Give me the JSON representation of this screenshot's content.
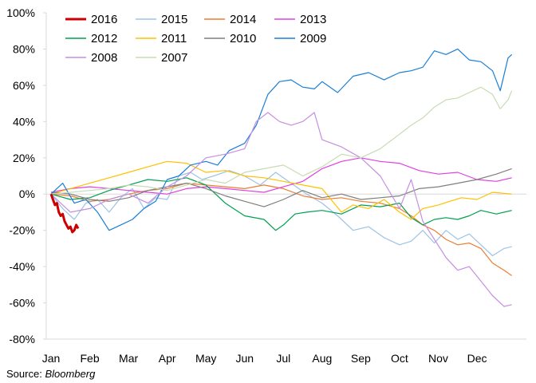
{
  "chart_data": {
    "type": "line",
    "title": "",
    "xlabel": "",
    "ylabel": "",
    "ylim": [
      -80,
      100
    ],
    "y_ticks": [
      100,
      80,
      60,
      40,
      20,
      0,
      -20,
      -40,
      -60,
      -80
    ],
    "y_tick_labels": [
      "100%",
      "80%",
      "60%",
      "40%",
      "20%",
      "0%",
      "-20%",
      "-40%",
      "-60%",
      "-80%"
    ],
    "x_ticks": [
      "Jan",
      "Feb",
      "Mar",
      "Apr",
      "May",
      "Jun",
      "Jul",
      "Aug",
      "Sep",
      "Oct",
      "Nov",
      "Dec"
    ],
    "x_range_months": [
      0,
      12
    ],
    "grid": {
      "horizontal": false,
      "zero_line": true
    },
    "legend": {
      "placement": "top-left",
      "columns": 4
    },
    "series": [
      {
        "name": "2016",
        "color": "#cc0000",
        "highlight": true,
        "points": [
          [
            0,
            0
          ],
          [
            0.05,
            -3
          ],
          [
            0.1,
            -6
          ],
          [
            0.15,
            -5
          ],
          [
            0.2,
            -10
          ],
          [
            0.25,
            -12
          ],
          [
            0.3,
            -11
          ],
          [
            0.35,
            -15
          ],
          [
            0.4,
            -17
          ],
          [
            0.45,
            -19
          ],
          [
            0.5,
            -18
          ],
          [
            0.55,
            -21
          ],
          [
            0.6,
            -20
          ],
          [
            0.65,
            -17
          ],
          [
            0.7,
            -19
          ]
        ]
      },
      {
        "name": "2015",
        "color": "#9dc3e6",
        "points": [
          [
            0,
            0
          ],
          [
            0.3,
            -8
          ],
          [
            0.6,
            -14
          ],
          [
            0.9,
            -5
          ],
          [
            1.2,
            -3
          ],
          [
            1.5,
            -10
          ],
          [
            1.8,
            -2
          ],
          [
            2.1,
            3
          ],
          [
            2.4,
            -8
          ],
          [
            2.7,
            -2
          ],
          [
            3.0,
            -3
          ],
          [
            3.3,
            10
          ],
          [
            3.6,
            12
          ],
          [
            3.9,
            8
          ],
          [
            4.2,
            10
          ],
          [
            4.6,
            13
          ],
          [
            5.0,
            10
          ],
          [
            5.4,
            5
          ],
          [
            5.8,
            12
          ],
          [
            6.2,
            6
          ],
          [
            6.6,
            0
          ],
          [
            7.0,
            -5
          ],
          [
            7.4,
            -12
          ],
          [
            7.8,
            -20
          ],
          [
            8.2,
            -18
          ],
          [
            8.6,
            -24
          ],
          [
            9.0,
            -28
          ],
          [
            9.3,
            -26
          ],
          [
            9.6,
            -20
          ],
          [
            9.9,
            -27
          ],
          [
            10.2,
            -20
          ],
          [
            10.5,
            -25
          ],
          [
            10.8,
            -22
          ],
          [
            11.1,
            -28
          ],
          [
            11.4,
            -34
          ],
          [
            11.7,
            -30
          ],
          [
            11.9,
            -29
          ]
        ]
      },
      {
        "name": "2014",
        "color": "#ed7d31",
        "points": [
          [
            0,
            0
          ],
          [
            0.5,
            -1
          ],
          [
            1.0,
            -4
          ],
          [
            1.5,
            -3
          ],
          [
            2.0,
            0
          ],
          [
            2.5,
            2
          ],
          [
            3.0,
            3
          ],
          [
            3.5,
            6
          ],
          [
            4.0,
            5
          ],
          [
            4.5,
            4
          ],
          [
            5.0,
            3
          ],
          [
            5.5,
            5
          ],
          [
            6.0,
            3
          ],
          [
            6.5,
            -1
          ],
          [
            7.0,
            -3
          ],
          [
            7.5,
            -2
          ],
          [
            8.0,
            -4
          ],
          [
            8.5,
            -5
          ],
          [
            9.0,
            -8
          ],
          [
            9.3,
            -12
          ],
          [
            9.6,
            -17
          ],
          [
            9.9,
            -20
          ],
          [
            10.2,
            -25
          ],
          [
            10.5,
            -28
          ],
          [
            10.8,
            -27
          ],
          [
            11.1,
            -30
          ],
          [
            11.4,
            -38
          ],
          [
            11.7,
            -42
          ],
          [
            11.9,
            -45
          ]
        ]
      },
      {
        "name": "2013",
        "color": "#e040e0",
        "points": [
          [
            0,
            1
          ],
          [
            0.5,
            3
          ],
          [
            1.0,
            4
          ],
          [
            1.5,
            3
          ],
          [
            2.0,
            2
          ],
          [
            2.5,
            1
          ],
          [
            3.0,
            0
          ],
          [
            3.5,
            3
          ],
          [
            4.0,
            4
          ],
          [
            4.5,
            3
          ],
          [
            5.0,
            2
          ],
          [
            5.5,
            1
          ],
          [
            6.0,
            4
          ],
          [
            6.5,
            7
          ],
          [
            7.0,
            14
          ],
          [
            7.5,
            18
          ],
          [
            8.0,
            20
          ],
          [
            8.5,
            18
          ],
          [
            9.0,
            17
          ],
          [
            9.5,
            13
          ],
          [
            10.0,
            11
          ],
          [
            10.5,
            12
          ],
          [
            11.0,
            8
          ],
          [
            11.5,
            7
          ],
          [
            11.9,
            9
          ]
        ]
      },
      {
        "name": "2012",
        "color": "#00a050",
        "points": [
          [
            0,
            0
          ],
          [
            0.5,
            -3
          ],
          [
            1.0,
            -2
          ],
          [
            1.5,
            2
          ],
          [
            2.0,
            5
          ],
          [
            2.5,
            8
          ],
          [
            3.0,
            7
          ],
          [
            3.5,
            9
          ],
          [
            4.0,
            5
          ],
          [
            4.5,
            -5
          ],
          [
            5.0,
            -12
          ],
          [
            5.5,
            -14
          ],
          [
            5.8,
            -20
          ],
          [
            6.0,
            -17
          ],
          [
            6.3,
            -11
          ],
          [
            6.6,
            -10
          ],
          [
            7.0,
            -9
          ],
          [
            7.5,
            -11
          ],
          [
            8.0,
            -6
          ],
          [
            8.5,
            -7
          ],
          [
            9.0,
            -5
          ],
          [
            9.3,
            -13
          ],
          [
            9.6,
            -17
          ],
          [
            9.9,
            -14
          ],
          [
            10.2,
            -13
          ],
          [
            10.5,
            -14
          ],
          [
            10.8,
            -12
          ],
          [
            11.1,
            -9
          ],
          [
            11.5,
            -11
          ],
          [
            11.9,
            -9
          ]
        ]
      },
      {
        "name": "2011",
        "color": "#ffc000",
        "points": [
          [
            0,
            0
          ],
          [
            0.5,
            3
          ],
          [
            1.0,
            6
          ],
          [
            1.5,
            9
          ],
          [
            2.0,
            12
          ],
          [
            2.5,
            15
          ],
          [
            3.0,
            18
          ],
          [
            3.5,
            17
          ],
          [
            4.0,
            12
          ],
          [
            4.5,
            13
          ],
          [
            5.0,
            10
          ],
          [
            5.5,
            9
          ],
          [
            6.0,
            7
          ],
          [
            6.5,
            5
          ],
          [
            7.0,
            3
          ],
          [
            7.5,
            -10
          ],
          [
            7.8,
            -6
          ],
          [
            8.2,
            -8
          ],
          [
            8.6,
            -3
          ],
          [
            9.0,
            -10
          ],
          [
            9.3,
            -14
          ],
          [
            9.6,
            -8
          ],
          [
            10.0,
            -6
          ],
          [
            10.3,
            -4
          ],
          [
            10.6,
            -2
          ],
          [
            11.0,
            -3
          ],
          [
            11.4,
            1
          ],
          [
            11.9,
            0
          ]
        ]
      },
      {
        "name": "2010",
        "color": "#7f7f7f",
        "points": [
          [
            0,
            1
          ],
          [
            0.5,
            0
          ],
          [
            1.0,
            -3
          ],
          [
            1.5,
            -4
          ],
          [
            2.0,
            -2
          ],
          [
            2.5,
            2
          ],
          [
            3.0,
            4
          ],
          [
            3.5,
            6
          ],
          [
            4.0,
            3
          ],
          [
            4.5,
            -1
          ],
          [
            5.0,
            -4
          ],
          [
            5.5,
            -7
          ],
          [
            6.0,
            -3
          ],
          [
            6.5,
            2
          ],
          [
            7.0,
            -2
          ],
          [
            7.5,
            0
          ],
          [
            8.0,
            -3
          ],
          [
            8.5,
            -2
          ],
          [
            9.0,
            -1
          ],
          [
            9.5,
            3
          ],
          [
            10.0,
            4
          ],
          [
            10.5,
            6
          ],
          [
            11.0,
            8
          ],
          [
            11.5,
            11
          ],
          [
            11.9,
            14
          ]
        ]
      },
      {
        "name": "2009",
        "color": "#1a7fd6",
        "points": [
          [
            0,
            0
          ],
          [
            0.3,
            6
          ],
          [
            0.6,
            -5
          ],
          [
            0.9,
            -3
          ],
          [
            1.2,
            -10
          ],
          [
            1.5,
            -20
          ],
          [
            1.8,
            -17
          ],
          [
            2.1,
            -14
          ],
          [
            2.4,
            -8
          ],
          [
            2.7,
            -4
          ],
          [
            3.0,
            8
          ],
          [
            3.3,
            10
          ],
          [
            3.6,
            16
          ],
          [
            4.0,
            18
          ],
          [
            4.3,
            16
          ],
          [
            4.6,
            24
          ],
          [
            5.0,
            28
          ],
          [
            5.3,
            38
          ],
          [
            5.6,
            55
          ],
          [
            5.9,
            62
          ],
          [
            6.2,
            63
          ],
          [
            6.5,
            59
          ],
          [
            6.8,
            58
          ],
          [
            7.0,
            62
          ],
          [
            7.4,
            56
          ],
          [
            7.8,
            65
          ],
          [
            8.2,
            67
          ],
          [
            8.6,
            63
          ],
          [
            9.0,
            67
          ],
          [
            9.3,
            68
          ],
          [
            9.6,
            70
          ],
          [
            9.9,
            79
          ],
          [
            10.2,
            77
          ],
          [
            10.5,
            80
          ],
          [
            10.8,
            74
          ],
          [
            11.1,
            73
          ],
          [
            11.4,
            68
          ],
          [
            11.6,
            57
          ],
          [
            11.8,
            75
          ],
          [
            11.9,
            77
          ]
        ]
      },
      {
        "name": "2008",
        "color": "#c78ee0",
        "points": [
          [
            0,
            0
          ],
          [
            0.5,
            -10
          ],
          [
            1.0,
            -8
          ],
          [
            1.5,
            -3
          ],
          [
            2.0,
            0
          ],
          [
            2.5,
            -5
          ],
          [
            3.0,
            4
          ],
          [
            3.5,
            10
          ],
          [
            4.0,
            20
          ],
          [
            4.5,
            22
          ],
          [
            5.0,
            25
          ],
          [
            5.3,
            40
          ],
          [
            5.6,
            45
          ],
          [
            5.9,
            40
          ],
          [
            6.2,
            38
          ],
          [
            6.5,
            40
          ],
          [
            6.8,
            45
          ],
          [
            7.0,
            30
          ],
          [
            7.5,
            26
          ],
          [
            8.0,
            20
          ],
          [
            8.5,
            10
          ],
          [
            9.0,
            -8
          ],
          [
            9.3,
            8
          ],
          [
            9.6,
            -15
          ],
          [
            9.9,
            -25
          ],
          [
            10.2,
            -35
          ],
          [
            10.5,
            -42
          ],
          [
            10.8,
            -40
          ],
          [
            11.1,
            -48
          ],
          [
            11.4,
            -56
          ],
          [
            11.7,
            -62
          ],
          [
            11.9,
            -61
          ]
        ]
      },
      {
        "name": "2007",
        "color": "#c8dbb4",
        "points": [
          [
            0,
            0
          ],
          [
            0.5,
            1
          ],
          [
            1.0,
            2
          ],
          [
            1.5,
            3
          ],
          [
            2.0,
            5
          ],
          [
            2.5,
            4
          ],
          [
            3.0,
            2
          ],
          [
            3.5,
            5
          ],
          [
            4.0,
            8
          ],
          [
            4.5,
            6
          ],
          [
            5.0,
            12
          ],
          [
            5.5,
            14
          ],
          [
            6.0,
            16
          ],
          [
            6.5,
            10
          ],
          [
            7.0,
            15
          ],
          [
            7.5,
            22
          ],
          [
            8.0,
            20
          ],
          [
            8.5,
            25
          ],
          [
            9.0,
            33
          ],
          [
            9.3,
            38
          ],
          [
            9.6,
            42
          ],
          [
            9.9,
            48
          ],
          [
            10.2,
            52
          ],
          [
            10.5,
            53
          ],
          [
            10.8,
            56
          ],
          [
            11.1,
            59
          ],
          [
            11.4,
            55
          ],
          [
            11.6,
            47
          ],
          [
            11.8,
            52
          ],
          [
            11.9,
            57
          ]
        ]
      }
    ]
  },
  "source": {
    "label": "Source:",
    "name": "Bloomberg"
  }
}
